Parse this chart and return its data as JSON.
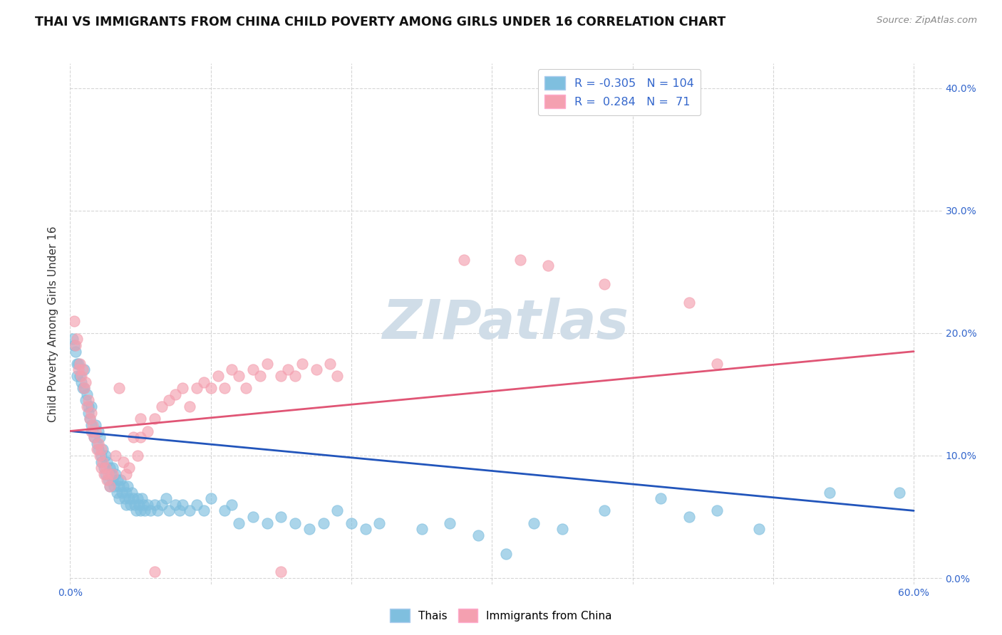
{
  "title": "THAI VS IMMIGRANTS FROM CHINA CHILD POVERTY AMONG GIRLS UNDER 16 CORRELATION CHART",
  "source": "Source: ZipAtlas.com",
  "ylabel": "Child Poverty Among Girls Under 16",
  "xlim": [
    0.0,
    0.62
  ],
  "ylim": [
    -0.005,
    0.42
  ],
  "yticks_right": [
    0.0,
    0.1,
    0.2,
    0.3,
    0.4
  ],
  "ytick_labels_right": [
    "0.0%",
    "10.0%",
    "20.0%",
    "30.0%",
    "40.0%"
  ],
  "thai_color": "#7fbfdf",
  "china_color": "#f4a0b0",
  "thai_line_color": "#2255bb",
  "china_line_color": "#e05575",
  "thai_R": -0.305,
  "thai_N": 104,
  "china_R": 0.284,
  "china_N": 71,
  "watermark": "ZIPatlas",
  "watermark_color": "#d0dde8",
  "legend_labels": [
    "Thais",
    "Immigrants from China"
  ],
  "thai_scatter": [
    [
      0.002,
      0.195
    ],
    [
      0.003,
      0.19
    ],
    [
      0.004,
      0.185
    ],
    [
      0.005,
      0.175
    ],
    [
      0.005,
      0.165
    ],
    [
      0.006,
      0.175
    ],
    [
      0.007,
      0.165
    ],
    [
      0.008,
      0.16
    ],
    [
      0.009,
      0.155
    ],
    [
      0.01,
      0.17
    ],
    [
      0.01,
      0.155
    ],
    [
      0.011,
      0.145
    ],
    [
      0.012,
      0.15
    ],
    [
      0.013,
      0.14
    ],
    [
      0.013,
      0.135
    ],
    [
      0.014,
      0.13
    ],
    [
      0.015,
      0.14
    ],
    [
      0.015,
      0.125
    ],
    [
      0.016,
      0.12
    ],
    [
      0.017,
      0.115
    ],
    [
      0.018,
      0.125
    ],
    [
      0.019,
      0.11
    ],
    [
      0.02,
      0.12
    ],
    [
      0.02,
      0.105
    ],
    [
      0.021,
      0.115
    ],
    [
      0.022,
      0.1
    ],
    [
      0.022,
      0.095
    ],
    [
      0.023,
      0.105
    ],
    [
      0.024,
      0.09
    ],
    [
      0.025,
      0.1
    ],
    [
      0.025,
      0.085
    ],
    [
      0.026,
      0.095
    ],
    [
      0.027,
      0.08
    ],
    [
      0.028,
      0.09
    ],
    [
      0.028,
      0.075
    ],
    [
      0.029,
      0.085
    ],
    [
      0.03,
      0.09
    ],
    [
      0.03,
      0.08
    ],
    [
      0.031,
      0.075
    ],
    [
      0.032,
      0.085
    ],
    [
      0.033,
      0.07
    ],
    [
      0.034,
      0.08
    ],
    [
      0.035,
      0.075
    ],
    [
      0.035,
      0.065
    ],
    [
      0.036,
      0.08
    ],
    [
      0.037,
      0.07
    ],
    [
      0.038,
      0.075
    ],
    [
      0.039,
      0.065
    ],
    [
      0.04,
      0.07
    ],
    [
      0.04,
      0.06
    ],
    [
      0.041,
      0.075
    ],
    [
      0.042,
      0.065
    ],
    [
      0.043,
      0.06
    ],
    [
      0.044,
      0.07
    ],
    [
      0.045,
      0.065
    ],
    [
      0.046,
      0.06
    ],
    [
      0.047,
      0.055
    ],
    [
      0.048,
      0.065
    ],
    [
      0.049,
      0.06
    ],
    [
      0.05,
      0.055
    ],
    [
      0.051,
      0.065
    ],
    [
      0.052,
      0.06
    ],
    [
      0.053,
      0.055
    ],
    [
      0.055,
      0.06
    ],
    [
      0.057,
      0.055
    ],
    [
      0.06,
      0.06
    ],
    [
      0.062,
      0.055
    ],
    [
      0.065,
      0.06
    ],
    [
      0.068,
      0.065
    ],
    [
      0.07,
      0.055
    ],
    [
      0.075,
      0.06
    ],
    [
      0.078,
      0.055
    ],
    [
      0.08,
      0.06
    ],
    [
      0.085,
      0.055
    ],
    [
      0.09,
      0.06
    ],
    [
      0.095,
      0.055
    ],
    [
      0.1,
      0.065
    ],
    [
      0.11,
      0.055
    ],
    [
      0.115,
      0.06
    ],
    [
      0.12,
      0.045
    ],
    [
      0.13,
      0.05
    ],
    [
      0.14,
      0.045
    ],
    [
      0.15,
      0.05
    ],
    [
      0.16,
      0.045
    ],
    [
      0.17,
      0.04
    ],
    [
      0.18,
      0.045
    ],
    [
      0.19,
      0.055
    ],
    [
      0.2,
      0.045
    ],
    [
      0.21,
      0.04
    ],
    [
      0.22,
      0.045
    ],
    [
      0.25,
      0.04
    ],
    [
      0.27,
      0.045
    ],
    [
      0.29,
      0.035
    ],
    [
      0.31,
      0.02
    ],
    [
      0.33,
      0.045
    ],
    [
      0.35,
      0.04
    ],
    [
      0.38,
      0.055
    ],
    [
      0.42,
      0.065
    ],
    [
      0.44,
      0.05
    ],
    [
      0.46,
      0.055
    ],
    [
      0.49,
      0.04
    ],
    [
      0.54,
      0.07
    ],
    [
      0.59,
      0.07
    ]
  ],
  "china_scatter": [
    [
      0.003,
      0.21
    ],
    [
      0.004,
      0.19
    ],
    [
      0.005,
      0.195
    ],
    [
      0.006,
      0.17
    ],
    [
      0.007,
      0.175
    ],
    [
      0.008,
      0.165
    ],
    [
      0.009,
      0.17
    ],
    [
      0.01,
      0.155
    ],
    [
      0.011,
      0.16
    ],
    [
      0.012,
      0.14
    ],
    [
      0.013,
      0.145
    ],
    [
      0.014,
      0.13
    ],
    [
      0.015,
      0.135
    ],
    [
      0.015,
      0.12
    ],
    [
      0.016,
      0.125
    ],
    [
      0.017,
      0.115
    ],
    [
      0.018,
      0.12
    ],
    [
      0.019,
      0.105
    ],
    [
      0.02,
      0.11
    ],
    [
      0.021,
      0.1
    ],
    [
      0.022,
      0.105
    ],
    [
      0.022,
      0.09
    ],
    [
      0.023,
      0.095
    ],
    [
      0.024,
      0.085
    ],
    [
      0.025,
      0.09
    ],
    [
      0.026,
      0.08
    ],
    [
      0.027,
      0.085
    ],
    [
      0.028,
      0.075
    ],
    [
      0.03,
      0.085
    ],
    [
      0.032,
      0.1
    ],
    [
      0.035,
      0.155
    ],
    [
      0.038,
      0.095
    ],
    [
      0.04,
      0.085
    ],
    [
      0.042,
      0.09
    ],
    [
      0.045,
      0.115
    ],
    [
      0.048,
      0.1
    ],
    [
      0.05,
      0.13
    ],
    [
      0.05,
      0.115
    ],
    [
      0.055,
      0.12
    ],
    [
      0.06,
      0.13
    ],
    [
      0.065,
      0.14
    ],
    [
      0.07,
      0.145
    ],
    [
      0.075,
      0.15
    ],
    [
      0.08,
      0.155
    ],
    [
      0.085,
      0.14
    ],
    [
      0.09,
      0.155
    ],
    [
      0.095,
      0.16
    ],
    [
      0.1,
      0.155
    ],
    [
      0.105,
      0.165
    ],
    [
      0.11,
      0.155
    ],
    [
      0.115,
      0.17
    ],
    [
      0.12,
      0.165
    ],
    [
      0.125,
      0.155
    ],
    [
      0.13,
      0.17
    ],
    [
      0.135,
      0.165
    ],
    [
      0.14,
      0.175
    ],
    [
      0.15,
      0.165
    ],
    [
      0.155,
      0.17
    ],
    [
      0.16,
      0.165
    ],
    [
      0.165,
      0.175
    ],
    [
      0.175,
      0.17
    ],
    [
      0.185,
      0.175
    ],
    [
      0.19,
      0.165
    ],
    [
      0.28,
      0.26
    ],
    [
      0.32,
      0.26
    ],
    [
      0.34,
      0.255
    ],
    [
      0.38,
      0.24
    ],
    [
      0.44,
      0.225
    ],
    [
      0.46,
      0.175
    ],
    [
      0.06,
      0.005
    ],
    [
      0.15,
      0.005
    ]
  ],
  "thai_line": [
    [
      0.0,
      0.12
    ],
    [
      0.6,
      0.055
    ]
  ],
  "china_line": [
    [
      0.0,
      0.12
    ],
    [
      0.6,
      0.185
    ]
  ]
}
